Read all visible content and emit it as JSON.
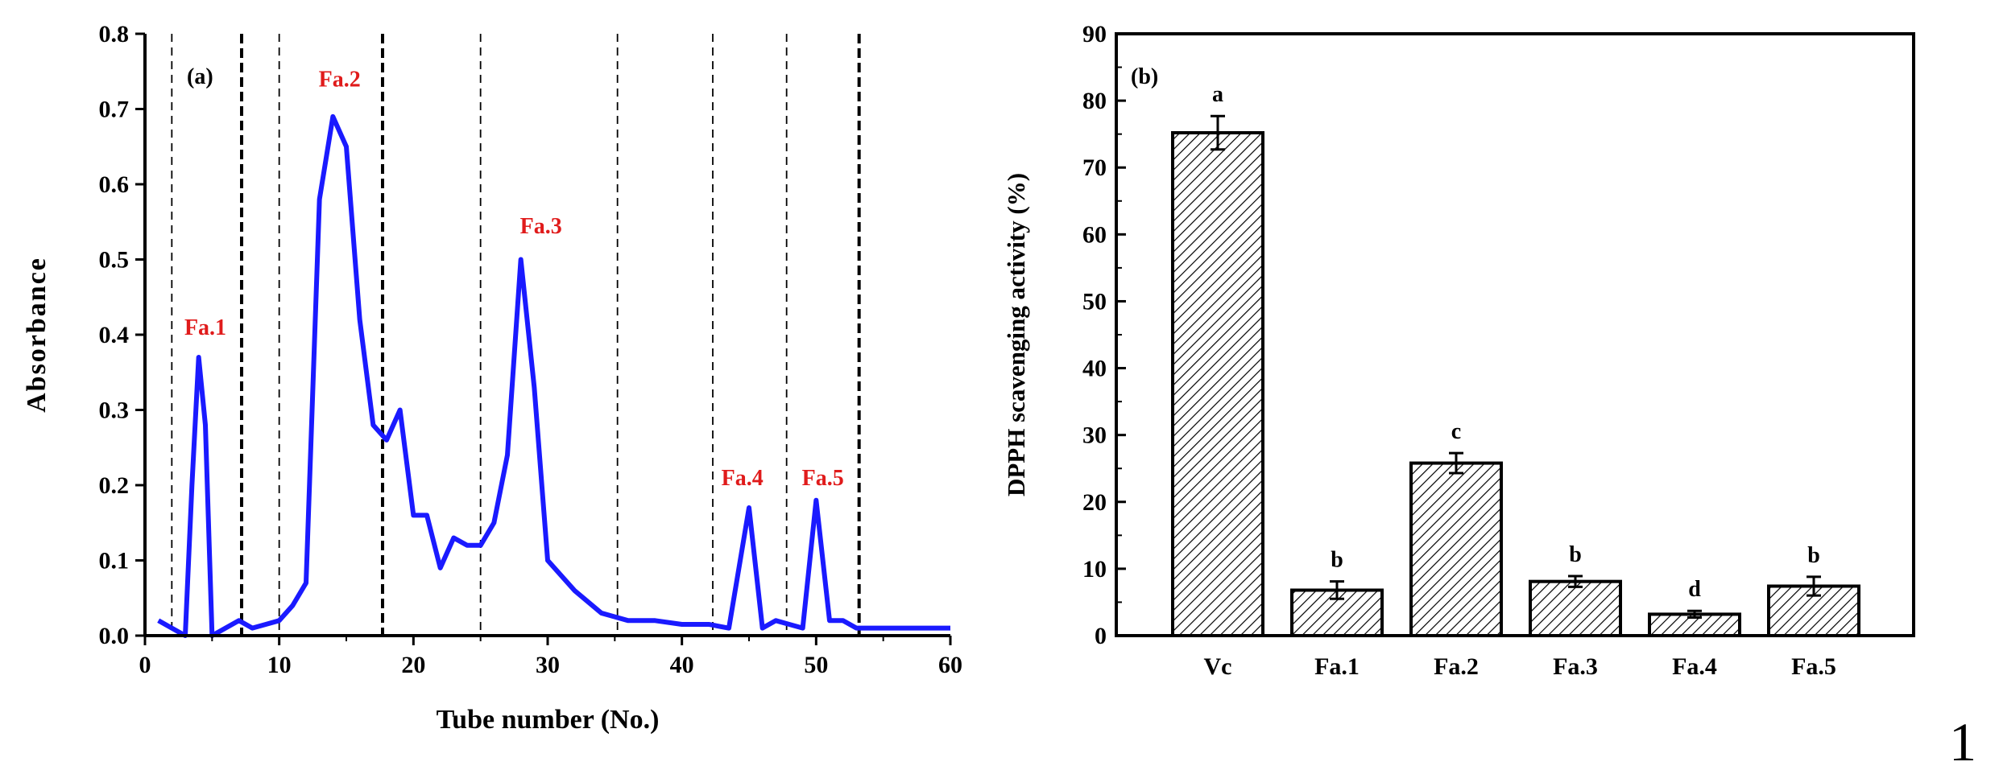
{
  "figure_number": "1",
  "colors": {
    "line": "#1a1aff",
    "peak_label": "#e01b1b",
    "axis": "#000000"
  },
  "chart_data": [
    {
      "type": "line",
      "panel_label": "(a)",
      "xlabel": "Tube number (No.)",
      "ylabel": "Absorbance",
      "xlim": [
        0,
        60
      ],
      "ylim": [
        0,
        0.8
      ],
      "x_ticks": [
        0,
        10,
        20,
        30,
        40,
        50,
        60
      ],
      "y_ticks": [
        0.0,
        0.1,
        0.2,
        0.3,
        0.4,
        0.5,
        0.6,
        0.7,
        0.8
      ],
      "x_tick_labels": [
        "0",
        "10",
        "20",
        "30",
        "40",
        "50",
        "60"
      ],
      "y_tick_labels": [
        "0.0",
        "0.1",
        "0.2",
        "0.3",
        "0.4",
        "0.5",
        "0.6",
        "0.7",
        "0.8"
      ],
      "series": [
        {
          "name": "Absorbance",
          "x": [
            1,
            2,
            3,
            3.5,
            4,
            4.5,
            5,
            6,
            7,
            8,
            9,
            10,
            11,
            12,
            13,
            14,
            15,
            16,
            17,
            18,
            19,
            20,
            21,
            22,
            23,
            24,
            25,
            26,
            27,
            28,
            29,
            30,
            32,
            34,
            36,
            38,
            40,
            42,
            43.5,
            45,
            46,
            47,
            48,
            49,
            50,
            51,
            52,
            53,
            54,
            56,
            58,
            60
          ],
          "y": [
            0.02,
            0.01,
            0.0,
            0.2,
            0.37,
            0.28,
            0.0,
            0.01,
            0.02,
            0.01,
            0.015,
            0.02,
            0.04,
            0.07,
            0.58,
            0.69,
            0.65,
            0.42,
            0.28,
            0.26,
            0.3,
            0.16,
            0.16,
            0.09,
            0.13,
            0.12,
            0.12,
            0.15,
            0.24,
            0.5,
            0.33,
            0.1,
            0.06,
            0.03,
            0.02,
            0.02,
            0.015,
            0.015,
            0.01,
            0.17,
            0.01,
            0.02,
            0.015,
            0.01,
            0.18,
            0.02,
            0.02,
            0.01,
            0.01,
            0.01,
            0.01,
            0.01
          ]
        }
      ],
      "divider_lines": [
        {
          "x": 2,
          "style": "thin"
        },
        {
          "x": 7.2,
          "style": "bold"
        },
        {
          "x": 10,
          "style": "thin"
        },
        {
          "x": 17.7,
          "style": "bold"
        },
        {
          "x": 25,
          "style": "thin"
        },
        {
          "x": 35.2,
          "style": "thin"
        },
        {
          "x": 42.3,
          "style": "thin"
        },
        {
          "x": 47.8,
          "style": "thin"
        },
        {
          "x": 53.2,
          "style": "bold"
        }
      ],
      "peak_labels": [
        {
          "text": "Fa.1",
          "x": 4.5,
          "y": 0.4
        },
        {
          "text": "Fa.2",
          "x": 14.5,
          "y": 0.73
        },
        {
          "text": "Fa.3",
          "x": 29.5,
          "y": 0.535
        },
        {
          "text": "Fa.4",
          "x": 44.5,
          "y": 0.2
        },
        {
          "text": "Fa.5",
          "x": 50.5,
          "y": 0.2
        }
      ]
    },
    {
      "type": "bar",
      "panel_label": "(b)",
      "ylabel": "DPPH scavenging activity (%)",
      "xlabel": "",
      "ylim": [
        0,
        90
      ],
      "y_ticks": [
        0,
        10,
        20,
        30,
        40,
        50,
        60,
        70,
        80,
        90
      ],
      "y_tick_labels": [
        "0",
        "10",
        "20",
        "30",
        "40",
        "50",
        "60",
        "70",
        "80",
        "90"
      ],
      "categories": [
        "Vc",
        "Fa.1",
        "Fa.2",
        "Fa.3",
        "Fa.4",
        "Fa.5"
      ],
      "values": [
        75.2,
        6.8,
        25.8,
        8.1,
        3.2,
        7.4
      ],
      "errors": [
        2.5,
        1.3,
        1.5,
        0.8,
        0.5,
        1.4
      ],
      "significance": [
        "a",
        "b",
        "c",
        "b",
        "d",
        "b"
      ],
      "fill_pattern": "diagonal-hatch"
    }
  ]
}
